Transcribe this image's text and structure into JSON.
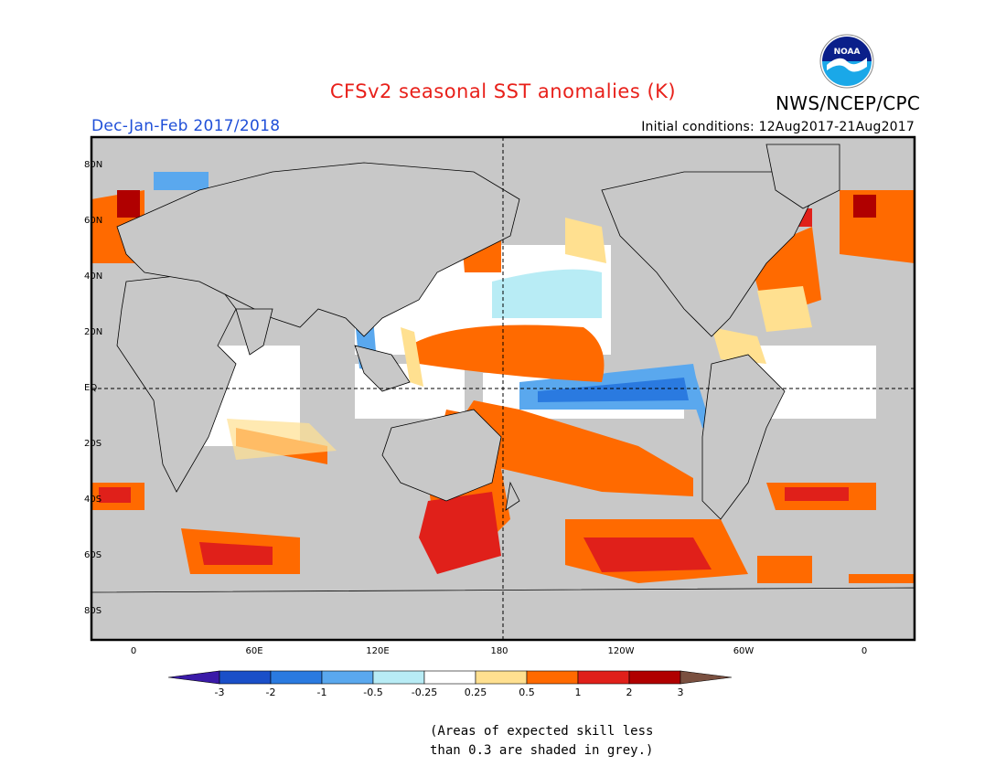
{
  "header": {
    "title": "CFSv2 seasonal SST anomalies (K)",
    "agency": "NWS/NCEP/CPC",
    "season": "Dec-Jan-Feb 2017/2018",
    "initial_conditions": "Initial conditions: 12Aug2017-21Aug2017",
    "title_color": "#e8201a",
    "season_color": "#1f4fd8",
    "logo_text": "NOAA"
  },
  "map": {
    "projection": "cylindrical equidistant, 0-360E centered on 180",
    "lat_labels": [
      "80N",
      "60N",
      "40N",
      "20N",
      "EQ",
      "20S",
      "40S",
      "60S",
      "80S"
    ],
    "lon_labels": [
      "0",
      "60E",
      "120E",
      "180",
      "120W",
      "60W",
      "0"
    ],
    "land_color": "#c8c8c8",
    "reference_lines": [
      "EQ",
      "180"
    ]
  },
  "legend": {
    "tick_labels": [
      "-3",
      "-2",
      "-1",
      "-0.5",
      "-0.25",
      "0.25",
      "0.5",
      "1",
      "2",
      "3"
    ],
    "colors": [
      "#3a1aa8",
      "#1a4fc8",
      "#2a7ae0",
      "#5aa8ee",
      "#b8ecf5",
      "#ffffff",
      "#ffe090",
      "#ff6a00",
      "#e0201a",
      "#b00000",
      "#7a5040"
    ]
  },
  "skill_note": "(Areas of expected skill less\nthan 0.3 are shaded in grey.)"
}
